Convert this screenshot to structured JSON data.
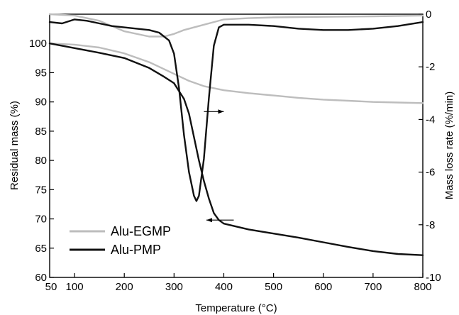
{
  "chart_data": {
    "type": "line",
    "title": "",
    "xlabel": "Temperature (°C)",
    "ylabel_left": "Residual mass (%)",
    "ylabel_right": "Mass loss rate (%/min)",
    "xlim": [
      50,
      800
    ],
    "ylim_left": [
      60,
      105
    ],
    "ylim_right": [
      -10,
      0
    ],
    "x_ticks": [
      100,
      200,
      300,
      400,
      500,
      600,
      700,
      800
    ],
    "y_left_ticks": [
      60,
      65,
      70,
      75,
      80,
      85,
      90,
      95,
      100
    ],
    "y_right_ticks": [
      -10,
      -8,
      -6,
      -4,
      -2,
      0
    ],
    "grid": false,
    "legend_position": "bottom-left",
    "colors": {
      "Alu-EGMP": "#bdbdbd",
      "Alu-PMP": "#111111"
    },
    "series": [
      {
        "name": "Alu-EGMP",
        "kind": "mass",
        "axis": "left",
        "x": [
          50,
          100,
          150,
          200,
          250,
          300,
          330,
          360,
          400,
          450,
          500,
          550,
          600,
          650,
          700,
          750,
          800
        ],
        "y": [
          100,
          99.8,
          99.3,
          98.3,
          96.8,
          94.8,
          93.6,
          92.7,
          92.0,
          91.5,
          91.1,
          90.7,
          90.4,
          90.2,
          90.0,
          89.9,
          89.8
        ]
      },
      {
        "name": "Alu-PMP",
        "kind": "mass",
        "axis": "left",
        "x": [
          50,
          100,
          150,
          200,
          250,
          280,
          300,
          320,
          330,
          340,
          350,
          360,
          370,
          380,
          390,
          400,
          450,
          500,
          550,
          600,
          650,
          700,
          750,
          800
        ],
        "y": [
          100,
          99.2,
          98.4,
          97.5,
          95.8,
          94.3,
          93.2,
          90.5,
          88.0,
          84.0,
          80.0,
          76.5,
          73.5,
          71.0,
          69.8,
          69.2,
          68.2,
          67.5,
          66.8,
          66.0,
          65.2,
          64.5,
          64.0,
          63.8
        ]
      },
      {
        "name": "Alu-EGMP",
        "kind": "rate",
        "axis": "right",
        "x": [
          50,
          100,
          150,
          200,
          250,
          280,
          300,
          320,
          350,
          380,
          400,
          450,
          500,
          600,
          700,
          800
        ],
        "y": [
          0,
          -0.05,
          -0.25,
          -0.65,
          -0.85,
          -0.85,
          -0.75,
          -0.6,
          -0.45,
          -0.3,
          -0.2,
          -0.15,
          -0.12,
          -0.1,
          -0.08,
          -0.05
        ]
      },
      {
        "name": "Alu-PMP",
        "kind": "rate",
        "axis": "right",
        "x": [
          50,
          75,
          100,
          125,
          150,
          175,
          200,
          225,
          250,
          270,
          290,
          300,
          310,
          320,
          330,
          340,
          345,
          350,
          360,
          370,
          380,
          390,
          400,
          450,
          500,
          550,
          600,
          650,
          700,
          750,
          800
        ],
        "y": [
          -0.3,
          -0.35,
          -0.2,
          -0.25,
          -0.35,
          -0.45,
          -0.5,
          -0.55,
          -0.6,
          -0.7,
          -1.0,
          -1.5,
          -2.8,
          -4.6,
          -6.0,
          -6.9,
          -7.1,
          -6.9,
          -5.5,
          -3.2,
          -1.2,
          -0.5,
          -0.4,
          -0.4,
          -0.45,
          -0.55,
          -0.6,
          -0.6,
          -0.55,
          -0.45,
          -0.3
        ]
      }
    ],
    "annotations": [
      {
        "type": "arrow",
        "direction": "right",
        "axis": "right",
        "from": [
          360,
          -3.7
        ],
        "to": [
          400,
          -3.7
        ]
      },
      {
        "type": "arrow",
        "direction": "left",
        "axis": "left",
        "from": [
          420,
          69.8
        ],
        "to": [
          365,
          69.8
        ]
      }
    ]
  }
}
